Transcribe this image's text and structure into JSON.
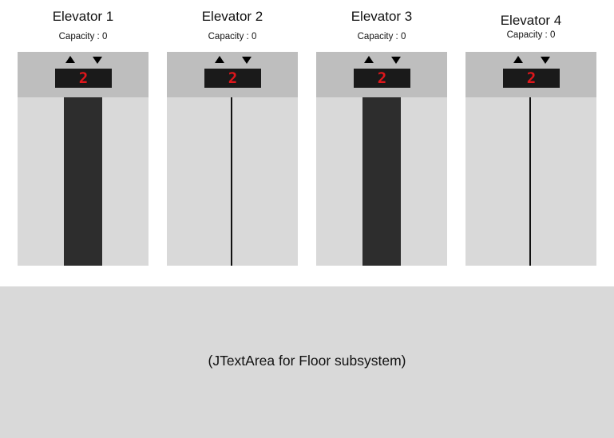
{
  "elevators": [
    {
      "title": "Elevator 1",
      "capacity": "Capacity : 0",
      "floor": "2",
      "doors": "open"
    },
    {
      "title": "Elevator 2",
      "capacity": "Capacity : 0",
      "floor": "2",
      "doors": "closed"
    },
    {
      "title": "Elevator 3",
      "capacity": "Capacity : 0",
      "floor": "2",
      "doors": "open"
    },
    {
      "title": "Elevator 4",
      "capacity": "Capacity : 0",
      "floor": "2",
      "doors": "closed"
    }
  ],
  "floor_area": {
    "text": "(JTextArea for Floor subsystem)"
  },
  "colors": {
    "header_panel": "#bebebe",
    "shaft": "#d9d9d9",
    "door_gap": "#2d2d2d",
    "display_bg": "#1a1a1a",
    "display_digit": "#e0161b"
  }
}
